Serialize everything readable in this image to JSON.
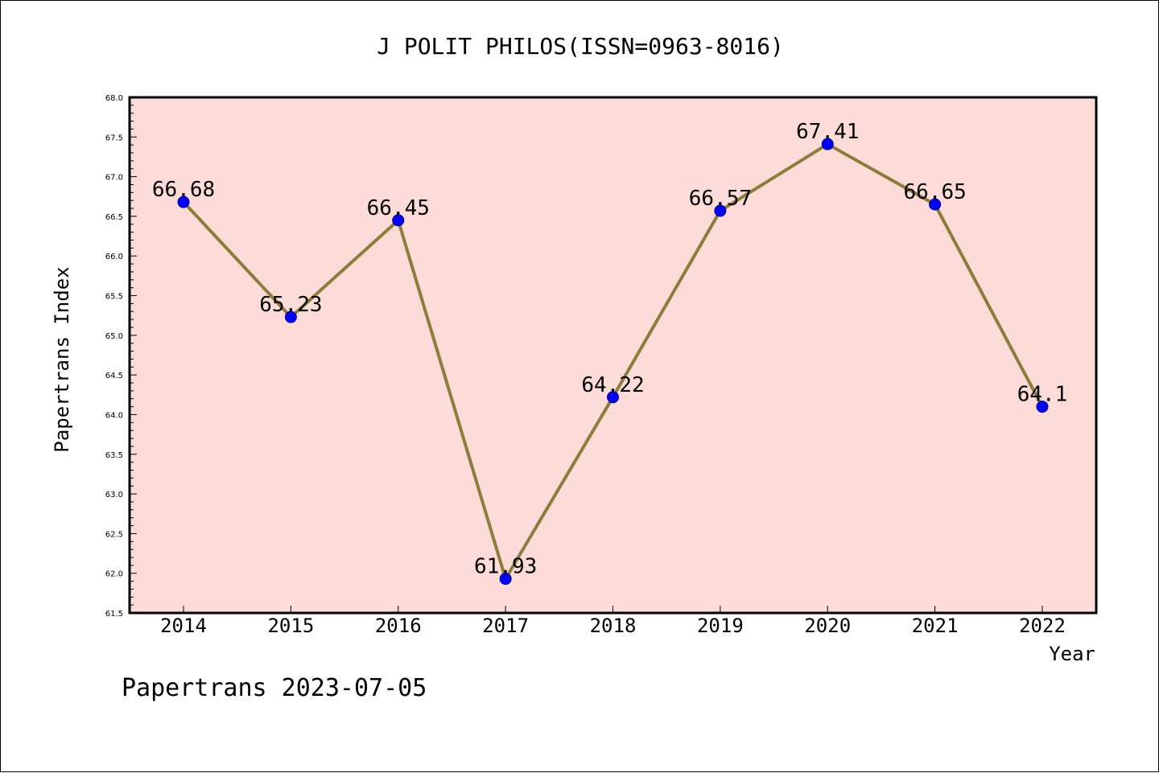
{
  "chart_data": {
    "type": "line",
    "title": "J POLIT PHILOS(ISSN=0963-8016)",
    "xlabel": "Year",
    "ylabel": "Papertrans Index",
    "categories": [
      "2014",
      "2015",
      "2016",
      "2017",
      "2018",
      "2019",
      "2020",
      "2021",
      "2022"
    ],
    "series": [
      {
        "values": [
          66.68,
          65.23,
          66.45,
          61.93,
          64.22,
          66.57,
          67.41,
          66.65,
          64.1
        ],
        "labels": [
          "66.68",
          "65.23",
          "66.45",
          "61.93",
          "64.22",
          "66.57",
          "67.41",
          "66.65",
          "64.1"
        ]
      }
    ],
    "ylim": [
      61.5,
      68.0
    ],
    "yticks": [
      "61.5",
      "62.0",
      "62.5",
      "63.0",
      "63.5",
      "64.0",
      "64.5",
      "65.0",
      "65.5",
      "66.0",
      "66.5",
      "67.0",
      "67.5",
      "68.0"
    ],
    "grid": false,
    "colors": {
      "plot_background": "#fddbd8",
      "line": "#8b7d3a",
      "marker": "#0000ff"
    }
  },
  "footer": {
    "text": "Papertrans 2023-07-05"
  }
}
